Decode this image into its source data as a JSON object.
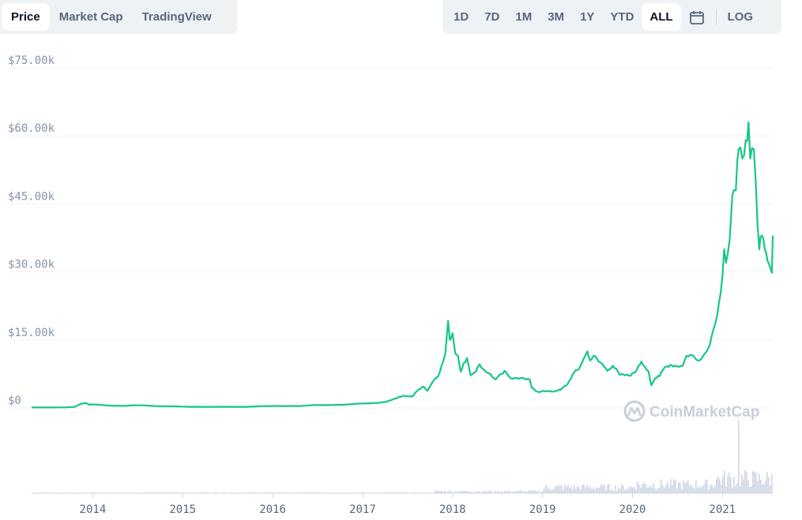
{
  "tabs": {
    "left": [
      {
        "label": "Price",
        "active": true
      },
      {
        "label": "Market Cap",
        "active": false
      },
      {
        "label": "TradingView",
        "active": false
      }
    ],
    "right": [
      {
        "label": "1D",
        "active": false
      },
      {
        "label": "7D",
        "active": false
      },
      {
        "label": "1M",
        "active": false
      },
      {
        "label": "3M",
        "active": false
      },
      {
        "label": "1Y",
        "active": false
      },
      {
        "label": "YTD",
        "active": false
      },
      {
        "label": "ALL",
        "active": true
      }
    ],
    "calendar_icon": "calendar-icon",
    "log_label": "LOG"
  },
  "watermark": {
    "text": "CoinMarketCap",
    "icon": "coinmarketcap-logo-icon"
  },
  "colors": {
    "line": "#16c784",
    "grid": "#eff2f5",
    "volume": "#cfd6e4",
    "text": "#58667e",
    "axis": "#8492a6"
  },
  "chart_data": {
    "type": "line",
    "ylim": [
      0,
      75000
    ],
    "y_ticks": [
      {
        "value": 0,
        "label": "$0"
      },
      {
        "value": 15000,
        "label": "$15.00k"
      },
      {
        "value": 30000,
        "label": "$30.00k"
      },
      {
        "value": 45000,
        "label": "$45.00k"
      },
      {
        "value": 60000,
        "label": "$60.00k"
      },
      {
        "value": 75000,
        "label": "$75.00k"
      }
    ],
    "x_range": [
      2013.32,
      2021.56
    ],
    "x_ticks": [
      {
        "value": 2014,
        "label": "2014"
      },
      {
        "value": 2015,
        "label": "2015"
      },
      {
        "value": 2016,
        "label": "2016"
      },
      {
        "value": 2017,
        "label": "2017"
      },
      {
        "value": 2018,
        "label": "2018"
      },
      {
        "value": 2019,
        "label": "2019"
      },
      {
        "value": 2020,
        "label": "2020"
      },
      {
        "value": 2021,
        "label": "2021"
      }
    ],
    "grid": true,
    "series": [
      {
        "points": [
          [
            2013.32,
            120
          ],
          [
            2013.5,
            100
          ],
          [
            2013.7,
            130
          ],
          [
            2013.8,
            250
          ],
          [
            2013.87,
            900
          ],
          [
            2013.92,
            1100
          ],
          [
            2013.96,
            700
          ],
          [
            2014.0,
            800
          ],
          [
            2014.1,
            650
          ],
          [
            2014.2,
            500
          ],
          [
            2014.35,
            450
          ],
          [
            2014.45,
            600
          ],
          [
            2014.55,
            580
          ],
          [
            2014.7,
            400
          ],
          [
            2014.9,
            350
          ],
          [
            2015.0,
            300
          ],
          [
            2015.1,
            250
          ],
          [
            2015.3,
            240
          ],
          [
            2015.5,
            260
          ],
          [
            2015.7,
            240
          ],
          [
            2015.9,
            420
          ],
          [
            2016.0,
            430
          ],
          [
            2016.3,
            420
          ],
          [
            2016.45,
            650
          ],
          [
            2016.6,
            620
          ],
          [
            2016.8,
            700
          ],
          [
            2016.95,
            950
          ],
          [
            2017.05,
            1000
          ],
          [
            2017.15,
            1100
          ],
          [
            2017.25,
            1300
          ],
          [
            2017.35,
            2000
          ],
          [
            2017.45,
            2700
          ],
          [
            2017.55,
            2500
          ],
          [
            2017.62,
            4000
          ],
          [
            2017.68,
            4700
          ],
          [
            2017.72,
            3800
          ],
          [
            2017.78,
            5800
          ],
          [
            2017.84,
            7000
          ],
          [
            2017.88,
            9500
          ],
          [
            2017.92,
            12000
          ],
          [
            2017.95,
            19200
          ],
          [
            2017.97,
            15000
          ],
          [
            2018.0,
            16500
          ],
          [
            2018.03,
            12000
          ],
          [
            2018.06,
            11500
          ],
          [
            2018.09,
            8000
          ],
          [
            2018.12,
            9800
          ],
          [
            2018.16,
            11000
          ],
          [
            2018.2,
            7200
          ],
          [
            2018.26,
            8000
          ],
          [
            2018.3,
            9600
          ],
          [
            2018.36,
            8200
          ],
          [
            2018.42,
            7500
          ],
          [
            2018.48,
            6300
          ],
          [
            2018.54,
            7500
          ],
          [
            2018.58,
            8200
          ],
          [
            2018.65,
            6500
          ],
          [
            2018.72,
            6600
          ],
          [
            2018.8,
            6400
          ],
          [
            2018.86,
            6200
          ],
          [
            2018.88,
            4500
          ],
          [
            2018.92,
            3800
          ],
          [
            2018.96,
            3500
          ],
          [
            2019.0,
            3800
          ],
          [
            2019.1,
            3600
          ],
          [
            2019.2,
            4000
          ],
          [
            2019.28,
            5300
          ],
          [
            2019.35,
            7800
          ],
          [
            2019.4,
            8500
          ],
          [
            2019.45,
            10500
          ],
          [
            2019.5,
            12500
          ],
          [
            2019.53,
            10500
          ],
          [
            2019.58,
            11500
          ],
          [
            2019.62,
            10300
          ],
          [
            2019.66,
            9800
          ],
          [
            2019.72,
            8200
          ],
          [
            2019.78,
            9300
          ],
          [
            2019.82,
            8700
          ],
          [
            2019.86,
            7300
          ],
          [
            2019.92,
            7200
          ],
          [
            2019.98,
            7100
          ],
          [
            2020.05,
            8500
          ],
          [
            2020.1,
            10200
          ],
          [
            2020.14,
            9000
          ],
          [
            2020.18,
            8000
          ],
          [
            2020.21,
            5000
          ],
          [
            2020.25,
            6500
          ],
          [
            2020.3,
            7000
          ],
          [
            2020.36,
            9000
          ],
          [
            2020.42,
            9500
          ],
          [
            2020.5,
            9200
          ],
          [
            2020.56,
            9300
          ],
          [
            2020.6,
            11500
          ],
          [
            2020.66,
            11700
          ],
          [
            2020.72,
            10500
          ],
          [
            2020.78,
            11300
          ],
          [
            2020.84,
            13000
          ],
          [
            2020.88,
            15800
          ],
          [
            2020.92,
            18500
          ],
          [
            2020.96,
            23000
          ],
          [
            2021.0,
            29000
          ],
          [
            2021.02,
            35000
          ],
          [
            2021.04,
            32000
          ],
          [
            2021.08,
            37000
          ],
          [
            2021.11,
            47000
          ],
          [
            2021.15,
            48000
          ],
          [
            2021.18,
            57000
          ],
          [
            2021.22,
            55000
          ],
          [
            2021.26,
            59000
          ],
          [
            2021.29,
            63000
          ],
          [
            2021.31,
            55000
          ],
          [
            2021.35,
            57000
          ],
          [
            2021.37,
            50000
          ],
          [
            2021.39,
            41000
          ],
          [
            2021.41,
            35000
          ],
          [
            2021.44,
            38000
          ],
          [
            2021.47,
            35000
          ],
          [
            2021.5,
            32500
          ],
          [
            2021.53,
            31000
          ],
          [
            2021.55,
            29800
          ],
          [
            2021.56,
            38000
          ]
        ]
      }
    ]
  }
}
